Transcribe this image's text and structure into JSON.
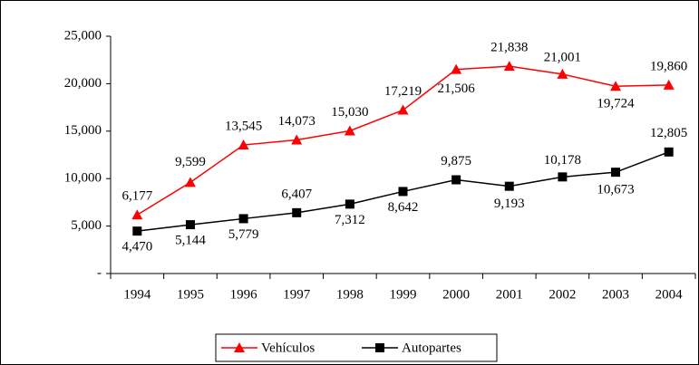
{
  "chart_data": {
    "type": "line",
    "categories": [
      "1994",
      "1995",
      "1996",
      "1997",
      "1998",
      "1999",
      "2000",
      "2001",
      "2002",
      "2003",
      "2004"
    ],
    "series": [
      {
        "name": "Vehículos",
        "color": "#ff0000",
        "marker": "triangle",
        "values": [
          6177,
          9599,
          13545,
          14073,
          15030,
          17219,
          21506,
          21838,
          21001,
          19724,
          19860
        ],
        "value_labels": [
          "6,177",
          "9,599",
          "13,545",
          "14,073",
          "15,030",
          "17,219",
          "21,506",
          "21,838",
          "21,001",
          "19,724",
          "19,860"
        ]
      },
      {
        "name": "Autopartes",
        "color": "#000000",
        "marker": "square",
        "values": [
          4470,
          5144,
          5779,
          6407,
          7312,
          8642,
          9875,
          9193,
          10178,
          10673,
          12805
        ],
        "value_labels": [
          "4,470",
          "5,144",
          "5,779",
          "6,407",
          "7,312",
          "8,642",
          "9,875",
          "9,193",
          "10,178",
          "10,673",
          "12,805"
        ]
      }
    ],
    "ylim": [
      0,
      25000
    ],
    "yticks": [
      {
        "value": 0,
        "label": "-"
      },
      {
        "value": 5000,
        "label": "5,000"
      },
      {
        "value": 10000,
        "label": "10,000"
      },
      {
        "value": 15000,
        "label": "15,000"
      },
      {
        "value": 20000,
        "label": "20,000"
      },
      {
        "value": 25000,
        "label": "25,000"
      }
    ],
    "grid": false,
    "legend": "bottom"
  }
}
